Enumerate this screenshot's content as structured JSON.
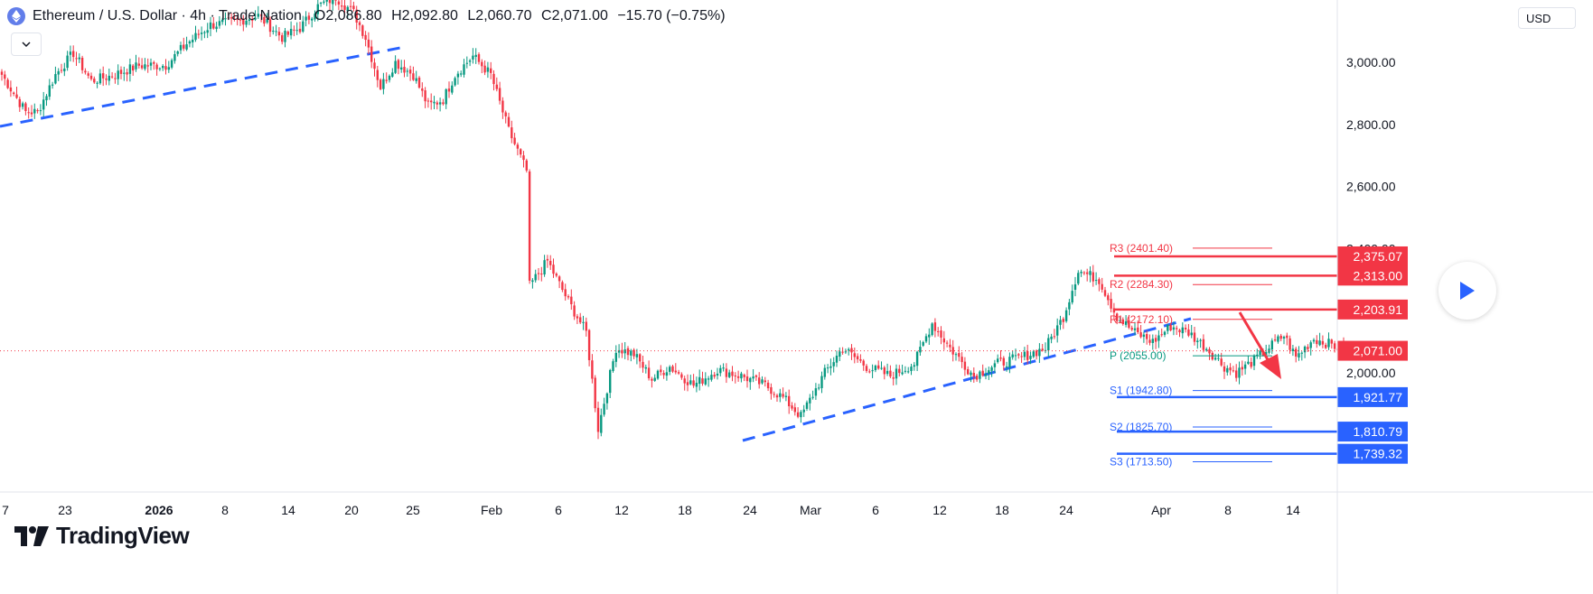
{
  "header": {
    "title": "Ethereum / U.S. Dollar · 4h · Trade Nation",
    "o_label": "O",
    "o_value": "2,086.80",
    "h_label": "H",
    "h_value": "2,092.80",
    "l_label": "L",
    "l_value": "2,060.70",
    "c_label": "C",
    "c_value": "2,071.00",
    "change": "−15.70 (−0.75%)"
  },
  "currency_label": "USD",
  "logo_text": "TradingView",
  "colors": {
    "up": "#089981",
    "down": "#f23645",
    "resistance": "#f23645",
    "support": "#2962ff",
    "trendline": "#2962ff",
    "pivot": "#089981",
    "price_line": "#f23645"
  },
  "icons": {
    "symbol": "ethereum-icon",
    "collapse": "chevron-down-icon",
    "play": "play-icon",
    "arrow": "red-arrow-down-icon"
  },
  "chart_data": {
    "type": "candlestick",
    "price_axis": {
      "ticks": [
        "3,000.00",
        "2,800.00",
        "2,600.00",
        "2,400.00",
        "2,000.00"
      ],
      "tick_values": [
        3000,
        2800,
        2600,
        2400,
        2000
      ],
      "range": [
        1520,
        3260
      ]
    },
    "time_axis": {
      "labels": [
        "7",
        "23",
        "2026",
        "8",
        "14",
        "20",
        "25",
        "Feb",
        "6",
        "12",
        "18",
        "24",
        "Mar",
        "6",
        "12",
        "18",
        "24",
        "Apr",
        "8",
        "14"
      ]
    },
    "price_labels": [
      {
        "text": "2,375.07",
        "value": 2375.07,
        "kind": "resistance"
      },
      {
        "text": "2,313.00",
        "value": 2313.0,
        "kind": "resistance"
      },
      {
        "text": "2,203.91",
        "value": 2203.91,
        "kind": "resistance"
      },
      {
        "text": "2,071.00",
        "value": 2071.0,
        "kind": "current"
      },
      {
        "text": "1,921.77",
        "value": 1921.77,
        "kind": "support"
      },
      {
        "text": "1,810.79",
        "value": 1810.79,
        "kind": "support"
      },
      {
        "text": "1,739.32",
        "value": 1739.32,
        "kind": "support"
      }
    ],
    "pivots": [
      {
        "label": "R3 (2401.40)",
        "value": 2401.4,
        "kind": "resistance"
      },
      {
        "label": "R2 (2284.30)",
        "value": 2284.3,
        "kind": "resistance"
      },
      {
        "label": "R1 (2172.10)",
        "value": 2172.1,
        "kind": "resistance"
      },
      {
        "label": "P (2055.00)",
        "value": 2055.0,
        "kind": "pivot"
      },
      {
        "label": "S1 (1942.80)",
        "value": 1942.8,
        "kind": "support"
      },
      {
        "label": "S2 (1825.70)",
        "value": 1825.7,
        "kind": "support"
      },
      {
        "label": "S3 (1713.50)",
        "value": 1713.5,
        "kind": "support"
      }
    ],
    "anchors": [
      [
        0,
        2960
      ],
      [
        8,
        2840
      ],
      [
        12,
        2840
      ],
      [
        18,
        2960
      ],
      [
        24,
        3030
      ],
      [
        30,
        2940
      ],
      [
        38,
        2960
      ],
      [
        46,
        2990
      ],
      [
        55,
        2990
      ],
      [
        62,
        3060
      ],
      [
        70,
        3120
      ],
      [
        78,
        3130
      ],
      [
        86,
        3150
      ],
      [
        94,
        3080
      ],
      [
        100,
        3110
      ],
      [
        106,
        3180
      ],
      [
        112,
        3210
      ],
      [
        118,
        3160
      ],
      [
        122,
        3080
      ],
      [
        127,
        2920
      ],
      [
        132,
        3000
      ],
      [
        138,
        2960
      ],
      [
        143,
        2860
      ],
      [
        148,
        2880
      ],
      [
        152,
        2960
      ],
      [
        158,
        3020
      ],
      [
        164,
        2960
      ],
      [
        170,
        2780
      ],
      [
        176,
        2650
      ],
      [
        177,
        2280
      ],
      [
        183,
        2360
      ],
      [
        190,
        2230
      ],
      [
        196,
        2130
      ],
      [
        200,
        1820
      ],
      [
        206,
        2080
      ],
      [
        212,
        2060
      ],
      [
        218,
        1980
      ],
      [
        224,
        2020
      ],
      [
        232,
        1960
      ],
      [
        240,
        2010
      ],
      [
        248,
        1990
      ],
      [
        256,
        1960
      ],
      [
        262,
        1920
      ],
      [
        268,
        1860
      ],
      [
        276,
        2000
      ],
      [
        282,
        2080
      ],
      [
        290,
        2020
      ],
      [
        298,
        1990
      ],
      [
        306,
        2030
      ],
      [
        312,
        2160
      ],
      [
        318,
        2080
      ],
      [
        326,
        1990
      ],
      [
        334,
        2030
      ],
      [
        342,
        2050
      ],
      [
        350,
        2080
      ],
      [
        356,
        2180
      ],
      [
        361,
        2330
      ],
      [
        368,
        2300
      ],
      [
        374,
        2180
      ],
      [
        380,
        2130
      ],
      [
        386,
        2100
      ],
      [
        392,
        2150
      ],
      [
        398,
        2130
      ],
      [
        404,
        2080
      ],
      [
        410,
        2020
      ],
      [
        414,
        2000
      ],
      [
        420,
        2040
      ],
      [
        426,
        2090
      ],
      [
        430,
        2120
      ],
      [
        434,
        2050
      ],
      [
        440,
        2110
      ],
      [
        446,
        2090
      ],
      [
        450,
        2071
      ]
    ]
  }
}
